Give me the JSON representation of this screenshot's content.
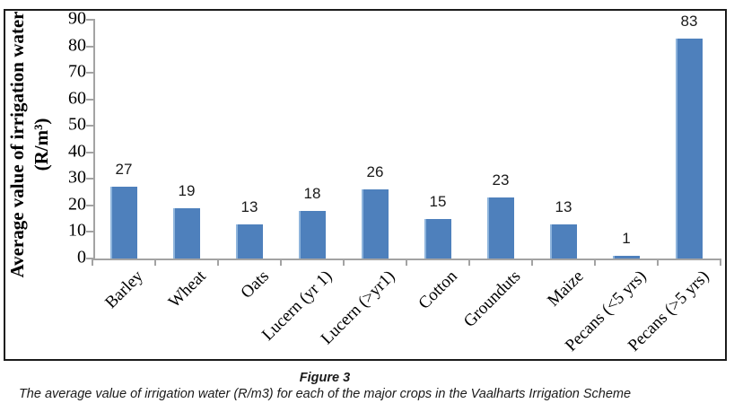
{
  "figure": {
    "caption_title": "Figure 3",
    "caption_text": "The average value of irrigation water (R/m3) for each of the major crops in the Vaalharts Irrigation Scheme"
  },
  "chart_data": {
    "type": "bar",
    "title": "",
    "ylabel_line1": "Average value of irrigation water",
    "ylabel_line2": "(R/m³)",
    "xlabel": "",
    "categories": [
      "Barley",
      "Wheat",
      "Oats",
      "Lucern (yr 1)",
      "Lucern (>yr1)",
      "Cotton",
      "Grounduts",
      "Maize",
      "Pecans (<5 yrs)",
      "Pecans (>5 yrs)"
    ],
    "values": [
      27,
      19,
      13,
      18,
      26,
      15,
      23,
      13,
      1,
      83
    ],
    "data_labels": [
      "27",
      "19",
      "13",
      "18",
      "26",
      "15",
      "23",
      "13",
      "1",
      "83"
    ],
    "ylim": [
      0,
      90
    ],
    "ytick_step": 10,
    "grid": false,
    "legend": false,
    "bar_color": "#4e80bc",
    "bar_edge_color": "#8eb4dc",
    "axis_color": "#a3a3a3"
  }
}
